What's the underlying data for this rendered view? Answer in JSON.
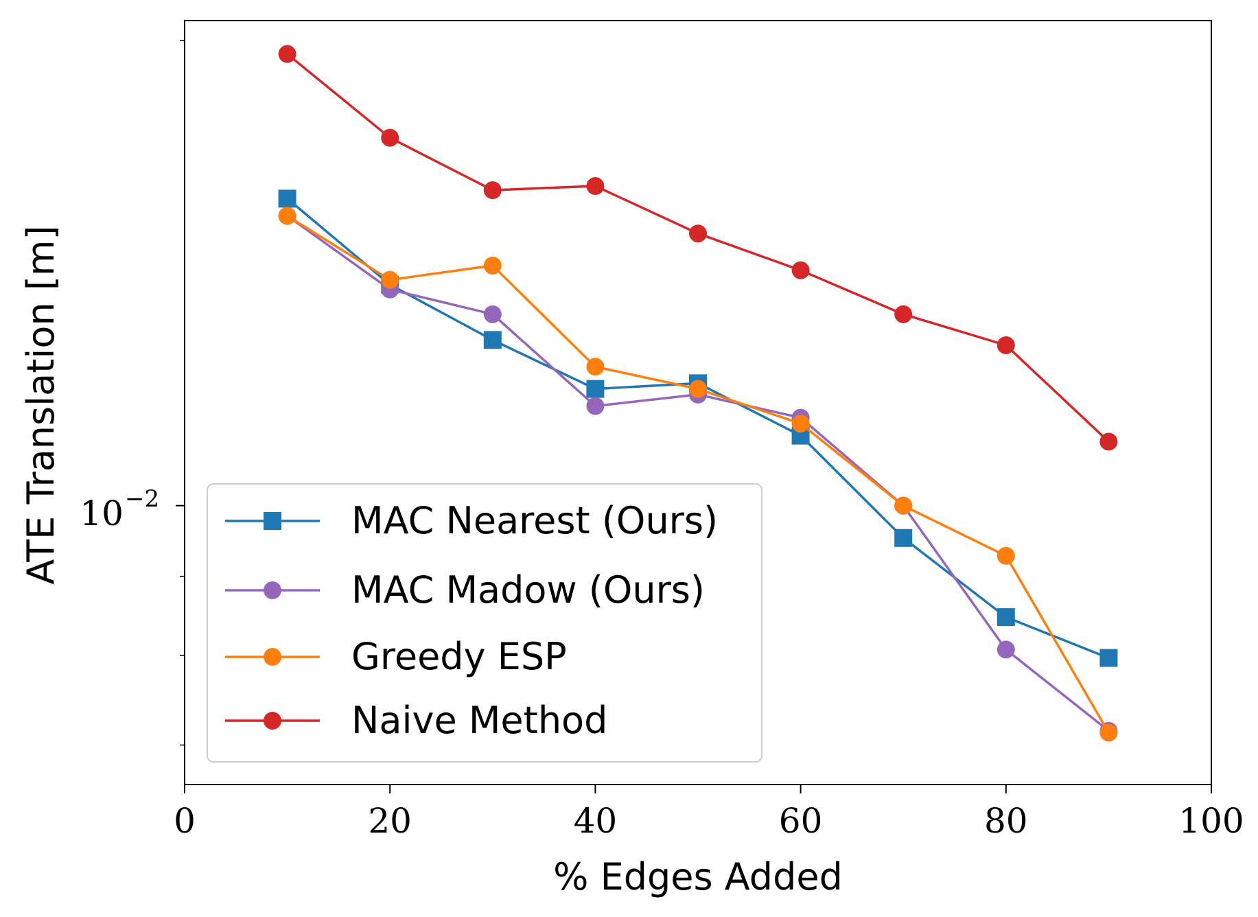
{
  "chart_data": {
    "type": "line",
    "title": "",
    "xlabel": "% Edges Added",
    "ylabel": "ATE Translation [m]",
    "xlim": [
      0,
      100
    ],
    "ylim": [
      0.0066,
      0.0206
    ],
    "yscale": "log",
    "x_ticks": [
      0,
      20,
      40,
      60,
      80,
      100
    ],
    "x_tick_labels": [
      "0",
      "20",
      "40",
      "60",
      "80",
      "100"
    ],
    "y_major_tick": {
      "value": 0.01,
      "base": "10",
      "exponent": "−2"
    },
    "y_minor_ticks": [
      0.007,
      0.008,
      0.009,
      0.02
    ],
    "grid": false,
    "legend_position": "lower-left",
    "series": [
      {
        "name": "MAC Nearest (Ours)",
        "color": "#1f77b4",
        "marker": "square",
        "x": [
          10,
          20,
          30,
          40,
          50,
          60,
          70,
          80,
          90
        ],
        "y": [
          0.0158,
          0.0139,
          0.0128,
          0.0119,
          0.012,
          0.0111,
          0.00953,
          0.00847,
          0.00797
        ]
      },
      {
        "name": "MAC Madow (Ours)",
        "color": "#9467bd",
        "marker": "circle",
        "x": [
          10,
          20,
          30,
          40,
          50,
          60,
          70,
          80,
          90
        ],
        "y": [
          0.0154,
          0.0138,
          0.0133,
          0.0116,
          0.0118,
          0.0114,
          0.01,
          0.00807,
          0.00715
        ]
      },
      {
        "name": "Greedy ESP",
        "color": "#ff7f0e",
        "marker": "circle",
        "x": [
          10,
          20,
          30,
          40,
          50,
          60,
          70,
          80,
          90
        ],
        "y": [
          0.0154,
          0.014,
          0.0143,
          0.0123,
          0.0119,
          0.0113,
          0.01,
          0.00928,
          0.00713
        ]
      },
      {
        "name": "Naive Method",
        "color": "#d62728",
        "marker": "circle",
        "x": [
          10,
          20,
          30,
          40,
          50,
          60,
          70,
          80,
          90
        ],
        "y": [
          0.0196,
          0.0173,
          0.016,
          0.0161,
          0.015,
          0.0142,
          0.0133,
          0.0127,
          0.011
        ]
      }
    ]
  }
}
